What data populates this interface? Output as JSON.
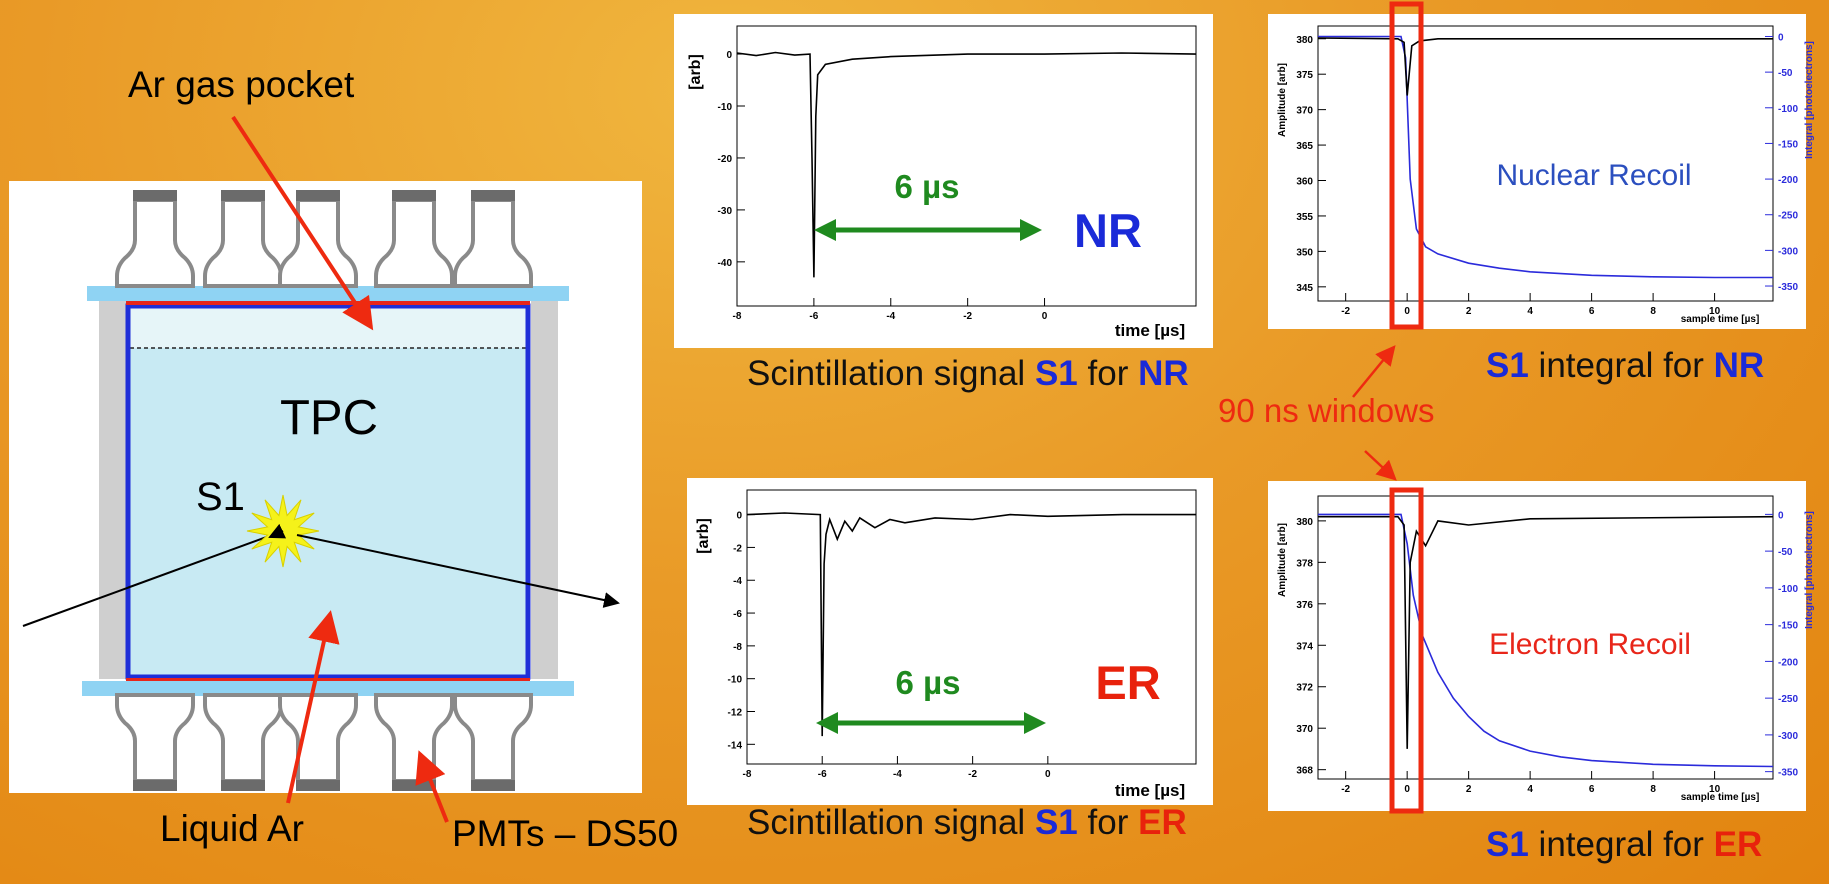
{
  "diagram": {
    "gas_pocket": "Ar gas pocket",
    "tpc": "TPC",
    "s1": "S1",
    "liquid": "Liquid Ar",
    "pmts": "PMTs – DS50"
  },
  "captions": [
    {
      "parts": [
        "Scintillation signal",
        "S1",
        "for",
        "NR"
      ]
    },
    {
      "parts": [
        "Scintillation signal",
        "S1",
        "for",
        "ER"
      ]
    },
    {
      "parts": [
        "S1",
        "integral for",
        "NR"
      ]
    },
    {
      "parts": [
        "S1",
        "integral for",
        "ER"
      ]
    }
  ],
  "window_note": "90 ns windows",
  "chart_data": [
    {
      "type": "line",
      "ylabel": "[arb]",
      "xlabel": "time [µs]",
      "xlim": [
        -8,
        3.94
      ],
      "ylim": [
        -48.5,
        5.4
      ],
      "xticks": [
        -8,
        -6,
        -4,
        -2,
        0
      ],
      "yticks": [
        0,
        -10,
        -20,
        -30,
        -40
      ],
      "annotations": [
        "6 µs",
        "NR"
      ],
      "series": [
        {
          "color": "#000000",
          "x": [
            -8,
            -7.5,
            -7,
            -6.5,
            -6.1,
            -6.05,
            -6,
            -5.95,
            -5.9,
            -5.7,
            -5,
            -4,
            -2,
            0,
            2,
            3.94
          ],
          "values": [
            0.2,
            -0.3,
            0.3,
            -0.2,
            0,
            -20,
            -43,
            -12,
            -4,
            -2,
            -1,
            -0.5,
            0,
            0,
            0.2,
            0
          ]
        }
      ]
    },
    {
      "type": "line",
      "ylabel": "[arb]",
      "xlabel": "time [µs]",
      "xlim": [
        -8,
        3.94
      ],
      "ylim": [
        -15.2,
        1.5
      ],
      "xticks": [
        -8,
        -6,
        -4,
        -2,
        0
      ],
      "yticks": [
        0,
        -2,
        -4,
        -6,
        -8,
        -10,
        -12,
        -14
      ],
      "annotations": [
        "6 µs",
        "ER"
      ],
      "series": [
        {
          "color": "#000000",
          "x": [
            -8,
            -7,
            -6.05,
            -6,
            -5.95,
            -5.9,
            -5.8,
            -5.6,
            -5.4,
            -5.2,
            -5,
            -4.6,
            -4.2,
            -3.8,
            -3,
            -2,
            -1,
            0,
            2,
            3.94
          ],
          "values": [
            0,
            0.1,
            0,
            -13.5,
            -3,
            -1.2,
            -0.3,
            -1.5,
            -0.4,
            -1,
            -0.2,
            -0.8,
            -0.3,
            -0.5,
            -0.2,
            -0.3,
            0,
            -0.1,
            0,
            0
          ]
        }
      ]
    },
    {
      "type": "line",
      "ylabel": "Amplitude [arb]",
      "y2label": "Integral [photoelectrons]",
      "xlabel": "sample time [µs]",
      "xlim": [
        -2.9,
        11.9
      ],
      "ylim": [
        343,
        381.8
      ],
      "y2lim": [
        -371,
        14.7
      ],
      "xticks": [
        -2,
        0,
        2,
        4,
        6,
        8,
        10
      ],
      "yticks": [
        345,
        350,
        355,
        360,
        365,
        370,
        375,
        380
      ],
      "y2ticks": [
        0,
        -50,
        -100,
        -150,
        -200,
        -250,
        -300,
        -350
      ],
      "annotations": [
        "Nuclear Recoil"
      ],
      "series": [
        {
          "color": "#2b2bdb",
          "axis": "y2",
          "x": [
            -2.9,
            -0.2,
            -0.05,
            0.1,
            0.3,
            0.6,
            1,
            2,
            3,
            4,
            6,
            8,
            10,
            11.9
          ],
          "values": [
            0,
            0,
            -30,
            -200,
            -270,
            -295,
            -305,
            -318,
            -325,
            -330,
            -335,
            -337,
            -338,
            -338
          ]
        },
        {
          "color": "#000000",
          "x": [
            -2.9,
            -0.3,
            -0.1,
            0,
            0.15,
            0.4,
            1,
            11.9
          ],
          "values": [
            380.1,
            380,
            379.5,
            372,
            379,
            379.7,
            380,
            380
          ]
        }
      ]
    },
    {
      "type": "line",
      "ylabel": "Amplitude [arb]",
      "y2label": "Integral [photoelectrons]",
      "xlabel": "sample time [µs]",
      "xlim": [
        -2.9,
        11.9
      ],
      "ylim": [
        367.55,
        381.2
      ],
      "y2lim": [
        -360,
        25
      ],
      "xticks": [
        -2,
        0,
        2,
        4,
        6,
        8,
        10
      ],
      "yticks": [
        368,
        370,
        372,
        374,
        376,
        378,
        380
      ],
      "y2ticks": [
        0,
        -50,
        -100,
        -150,
        -200,
        -250,
        -300,
        -350
      ],
      "annotations": [
        "Electron Recoil"
      ],
      "series": [
        {
          "color": "#2b2bdb",
          "axis": "y2",
          "x": [
            -2.9,
            -0.2,
            0,
            0.2,
            0.5,
            1,
            1.5,
            2,
            2.5,
            3,
            4,
            5,
            6,
            8,
            10,
            11.9
          ],
          "values": [
            0,
            0,
            -40,
            -110,
            -165,
            -215,
            -250,
            -275,
            -295,
            -308,
            -322,
            -330,
            -335,
            -340,
            -342,
            -343
          ]
        },
        {
          "color": "#000000",
          "x": [
            -2.9,
            -0.3,
            -0.1,
            0,
            0.1,
            0.3,
            0.6,
            1,
            2,
            4,
            11.9
          ],
          "values": [
            380.2,
            380.2,
            379.8,
            369,
            378,
            379.5,
            378.8,
            380,
            379.8,
            380.1,
            380.2
          ]
        }
      ]
    }
  ]
}
